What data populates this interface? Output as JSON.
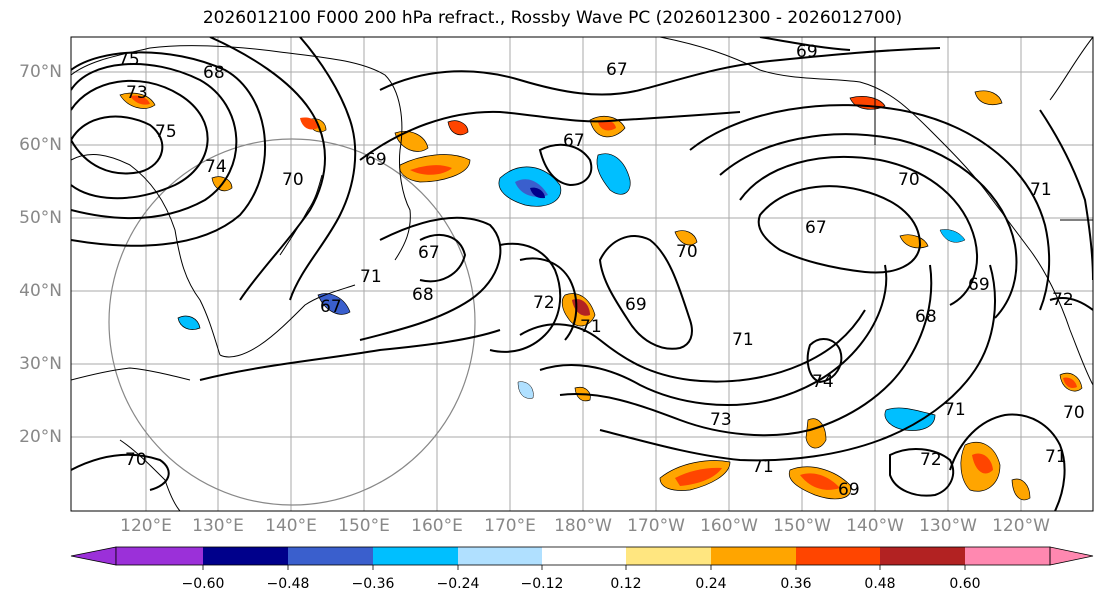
{
  "title": "2026012100 F000 200 hPa refract., Rossby Wave PC (2026012300 - 2026012700)",
  "map": {
    "lat_labels": [
      "70°N",
      "60°N",
      "50°N",
      "40°N",
      "30°N",
      "20°N"
    ],
    "lon_labels": [
      "120°E",
      "130°E",
      "140°E",
      "150°E",
      "160°E",
      "170°E",
      "180°W",
      "170°W",
      "160°W",
      "150°W",
      "140°W",
      "130°W",
      "120°W"
    ],
    "contour_labels": [
      "75",
      "73",
      "75",
      "74",
      "70",
      "69",
      "67",
      "67",
      "71",
      "68",
      "69",
      "67",
      "70",
      "67",
      "72",
      "71",
      "69",
      "71",
      "73",
      "74",
      "71",
      "70",
      "67",
      "69",
      "68",
      "71",
      "72",
      "70",
      "71",
      "72",
      "71",
      "69",
      "70",
      "68"
    ]
  },
  "colorbar": {
    "ticks": [
      "−0.60",
      "−0.48",
      "−0.36",
      "−0.24",
      "−0.12",
      "0.12",
      "0.24",
      "0.36",
      "0.48",
      "0.60"
    ],
    "colors": [
      "#9b30d9",
      "#00008b",
      "#3a5fcd",
      "#00bfff",
      "#b0e0ff",
      "#ffffff",
      "#ffe680",
      "#ffa500",
      "#ff4500",
      "#b22222",
      "#ff88b0"
    ]
  }
}
